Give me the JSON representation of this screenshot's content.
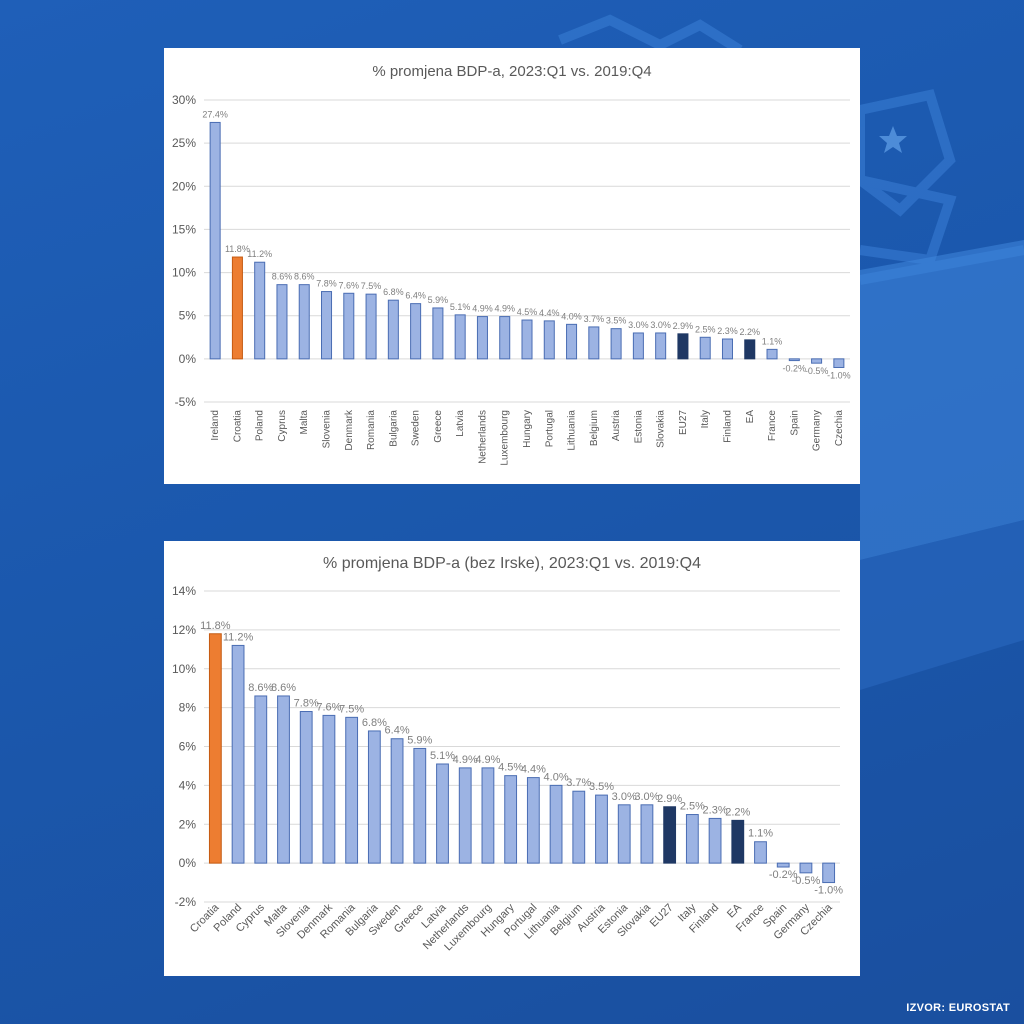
{
  "colors": {
    "bar_default": "#9cb3e3",
    "bar_default_stroke": "#4a6db3",
    "bar_croatia": "#ed7d31",
    "bar_croatia_stroke": "#c55a11",
    "bar_aggregate": "#1f3864",
    "gridline": "#d9d9d9"
  },
  "source_label": "IZVOR: EUROSTAT",
  "chart_data": [
    {
      "type": "bar",
      "title": "% promjena  BDP-a, 2023:Q1 vs. 2019:Q4",
      "xlabel": "",
      "ylabel": "",
      "ylim": [
        -5,
        30
      ],
      "yticks": [
        -5,
        0,
        5,
        10,
        15,
        20,
        25,
        30
      ],
      "ytick_labels": [
        "-5%",
        "0%",
        "5%",
        "10%",
        "15%",
        "20%",
        "25%",
        "30%"
      ],
      "grid": true,
      "categories": [
        "Ireland",
        "Croatia",
        "Poland",
        "Cyprus",
        "Malta",
        "Slovenia",
        "Denmark",
        "Romania",
        "Bulgaria",
        "Sweden",
        "Greece",
        "Latvia",
        "Netherlands",
        "Luxembourg",
        "Hungary",
        "Portugal",
        "Lithuania",
        "Belgium",
        "Austria",
        "Estonia",
        "Slovakia",
        "EU27",
        "Italy",
        "Finland",
        "EA",
        "France",
        "Spain",
        "Germany",
        "Czechia"
      ],
      "values": [
        27.4,
        11.8,
        11.2,
        8.6,
        8.6,
        7.8,
        7.6,
        7.5,
        6.8,
        6.4,
        5.9,
        5.1,
        4.9,
        4.9,
        4.5,
        4.4,
        4.0,
        3.7,
        3.5,
        3.0,
        3.0,
        2.9,
        2.5,
        2.3,
        2.2,
        1.1,
        -0.2,
        -0.5,
        -1.0
      ],
      "data_labels": [
        "27.4%",
        "11.8%",
        "11.2%",
        "8.6%",
        "8.6%",
        "7.8%",
        "7.6%",
        "7.5%",
        "6.8%",
        "6.4%",
        "5.9%",
        "5.1%",
        "4.9%",
        "4.9%",
        "4.5%",
        "4.4%",
        "4.0%",
        "3.7%",
        "3.5%",
        "3.0%",
        "3.0%",
        "2.9%",
        "2.5%",
        "2.3%",
        "2.2%",
        "1.1%",
        "-0.2%",
        "-0.5%",
        "-1.0%"
      ],
      "highlight": {
        "Croatia": "croatia",
        "EU27": "aggregate",
        "EA": "aggregate"
      }
    },
    {
      "type": "bar",
      "title": "% promjena  BDP-a (bez Irske), 2023:Q1 vs. 2019:Q4",
      "xlabel": "",
      "ylabel": "",
      "ylim": [
        -2,
        14
      ],
      "yticks": [
        -2,
        0,
        2,
        4,
        6,
        8,
        10,
        12,
        14
      ],
      "ytick_labels": [
        "-2%",
        "0%",
        "2%",
        "4%",
        "6%",
        "8%",
        "10%",
        "12%",
        "14%"
      ],
      "grid": true,
      "categories": [
        "Croatia",
        "Poland",
        "Cyprus",
        "Malta",
        "Slovenia",
        "Denmark",
        "Romania",
        "Bulgaria",
        "Sweden",
        "Greece",
        "Latvia",
        "Netherlands",
        "Luxembourg",
        "Hungary",
        "Portugal",
        "Lithuania",
        "Belgium",
        "Austria",
        "Estonia",
        "Slovakia",
        "EU27",
        "Italy",
        "Finland",
        "EA",
        "France",
        "Spain",
        "Germany",
        "Czechia"
      ],
      "values": [
        11.8,
        11.2,
        8.6,
        8.6,
        7.8,
        7.6,
        7.5,
        6.8,
        6.4,
        5.9,
        5.1,
        4.9,
        4.9,
        4.5,
        4.4,
        4.0,
        3.7,
        3.5,
        3.0,
        3.0,
        2.9,
        2.5,
        2.3,
        2.2,
        1.1,
        -0.2,
        -0.5,
        -1.0
      ],
      "data_labels": [
        "11.8%",
        "11.2%",
        "8.6%",
        "8.6%",
        "7.8%",
        "7.6%",
        "7.5%",
        "6.8%",
        "6.4%",
        "5.9%",
        "5.1%",
        "4.9%",
        "4.9%",
        "4.5%",
        "4.4%",
        "4.0%",
        "3.7%",
        "3.5%",
        "3.0%",
        "3.0%",
        "2.9%",
        "2.5%",
        "2.3%",
        "2.2%",
        "1.1%",
        "-0.2%",
        "-0.5%",
        "-1.0%"
      ],
      "highlight": {
        "Croatia": "croatia",
        "EU27": "aggregate",
        "EA": "aggregate"
      }
    }
  ]
}
